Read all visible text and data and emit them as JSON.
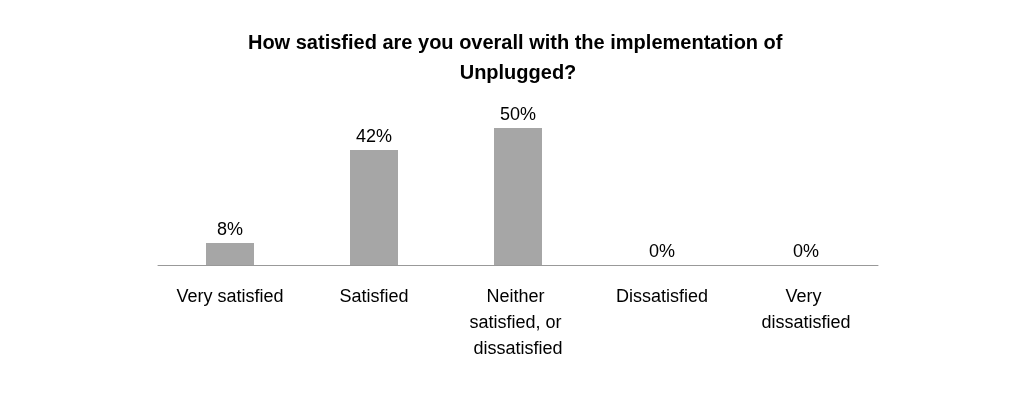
{
  "chart_data": {
    "type": "bar",
    "title": "How satisfied are you overall with the implementation of Unplugged?",
    "categories": [
      "Very satisfied",
      "Satisfied",
      "Neither satisfied, or dissatisfied",
      "Dissatisfied",
      "Very dissatisfied"
    ],
    "values": [
      8,
      42,
      50,
      0,
      0
    ],
    "value_labels": [
      "8%",
      "42%",
      "50%",
      "0%",
      "0%"
    ],
    "color": "#a6a6a6",
    "grid": false
  }
}
